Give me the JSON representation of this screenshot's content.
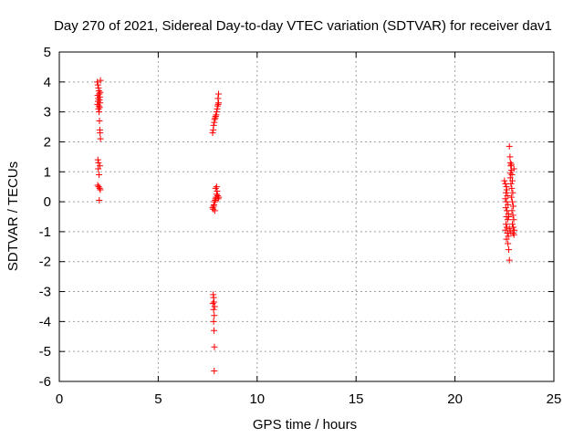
{
  "chart_data": {
    "type": "scatter",
    "title": "Day 270 of 2021, Sidereal Day-to-day VTEC variation (SDTVAR) for receiver dav1",
    "xlabel": "GPS time / hours",
    "ylabel": "SDTVAR / TECUs",
    "xlim": [
      0,
      25
    ],
    "ylim": [
      -6,
      5
    ],
    "x_ticks": [
      "0",
      "5",
      "10",
      "15",
      "20",
      "25"
    ],
    "y_ticks": [
      "-6",
      "-5",
      "-4",
      "-3",
      "-2",
      "-1",
      "0",
      "1",
      "2",
      "3",
      "4",
      "5"
    ],
    "grid": true,
    "marker": "+",
    "color": "#ff0000",
    "series": [
      {
        "points": [
          [
            1.92,
            4.0
          ],
          [
            1.95,
            3.9
          ],
          [
            1.98,
            3.8
          ],
          [
            2.0,
            3.7
          ],
          [
            2.02,
            3.6
          ],
          [
            1.94,
            3.55
          ],
          [
            2.05,
            3.5
          ],
          [
            1.97,
            3.45
          ],
          [
            2.03,
            3.4
          ],
          [
            1.96,
            3.35
          ],
          [
            2.06,
            3.3
          ],
          [
            1.93,
            3.25
          ],
          [
            2.0,
            3.2
          ],
          [
            2.04,
            3.15
          ],
          [
            1.98,
            3.1
          ],
          [
            2.08,
            4.05
          ],
          [
            2.07,
            3.65
          ],
          [
            2.01,
            3.0
          ],
          [
            2.03,
            2.7
          ],
          [
            2.05,
            2.4
          ],
          [
            2.06,
            2.3
          ],
          [
            2.08,
            2.1
          ],
          [
            1.95,
            1.4
          ],
          [
            1.98,
            1.3
          ],
          [
            2.05,
            1.2
          ],
          [
            1.97,
            1.1
          ],
          [
            2.01,
            0.9
          ],
          [
            1.94,
            0.55
          ],
          [
            1.99,
            0.5
          ],
          [
            2.04,
            0.45
          ],
          [
            2.07,
            0.4
          ],
          [
            2.02,
            0.05
          ]
        ]
      },
      {
        "points": [
          [
            7.75,
            2.3
          ],
          [
            7.78,
            2.4
          ],
          [
            7.8,
            2.55
          ],
          [
            7.83,
            2.65
          ],
          [
            7.85,
            2.75
          ],
          [
            7.88,
            2.8
          ],
          [
            7.9,
            2.85
          ],
          [
            7.93,
            2.9
          ],
          [
            7.95,
            3.0
          ],
          [
            7.98,
            3.1
          ],
          [
            8.0,
            3.2
          ],
          [
            8.03,
            3.25
          ],
          [
            8.05,
            3.3
          ],
          [
            8.02,
            3.45
          ],
          [
            8.05,
            3.6
          ],
          [
            7.75,
            -0.2
          ],
          [
            7.78,
            -0.25
          ],
          [
            7.8,
            -0.15
          ],
          [
            7.82,
            -0.1
          ],
          [
            7.85,
            0.0
          ],
          [
            7.88,
            0.05
          ],
          [
            7.9,
            0.1
          ],
          [
            7.93,
            0.15
          ],
          [
            7.95,
            0.25
          ],
          [
            7.98,
            0.35
          ],
          [
            7.9,
            0.45
          ],
          [
            7.95,
            0.5
          ],
          [
            8.0,
            0.2
          ],
          [
            8.03,
            0.1
          ],
          [
            8.06,
            0.15
          ],
          [
            7.86,
            -0.3
          ],
          [
            7.78,
            -3.1
          ],
          [
            7.8,
            -3.2
          ],
          [
            7.82,
            -3.35
          ],
          [
            7.76,
            -3.4
          ],
          [
            7.85,
            -3.5
          ],
          [
            7.8,
            -3.6
          ],
          [
            7.83,
            -3.8
          ],
          [
            7.8,
            -4.0
          ],
          [
            7.82,
            -4.3
          ],
          [
            7.84,
            -4.85
          ],
          [
            7.83,
            -5.65
          ]
        ]
      },
      {
        "points": [
          [
            22.5,
            0.7
          ],
          [
            22.55,
            0.6
          ],
          [
            22.6,
            0.5
          ],
          [
            22.62,
            0.4
          ],
          [
            22.58,
            0.3
          ],
          [
            22.65,
            0.2
          ],
          [
            22.55,
            0.1
          ],
          [
            22.6,
            0.0
          ],
          [
            22.68,
            -0.1
          ],
          [
            22.57,
            -0.2
          ],
          [
            22.63,
            -0.3
          ],
          [
            22.7,
            -0.4
          ],
          [
            22.6,
            -0.5
          ],
          [
            22.66,
            -0.6
          ],
          [
            22.58,
            -0.75
          ],
          [
            22.62,
            -0.85
          ],
          [
            22.55,
            -0.95
          ],
          [
            22.65,
            -1.05
          ],
          [
            22.7,
            -1.15
          ],
          [
            22.6,
            -1.25
          ],
          [
            22.68,
            -1.4
          ],
          [
            22.72,
            -1.6
          ],
          [
            22.75,
            -1.95
          ],
          [
            22.75,
            1.85
          ],
          [
            22.78,
            1.5
          ],
          [
            22.8,
            1.3
          ],
          [
            22.82,
            1.2
          ],
          [
            22.85,
            1.05
          ],
          [
            22.88,
            0.9
          ],
          [
            22.8,
            0.8
          ],
          [
            22.9,
            0.7
          ],
          [
            22.83,
            0.6
          ],
          [
            22.87,
            0.45
          ],
          [
            22.92,
            0.3
          ],
          [
            22.85,
            0.15
          ],
          [
            22.9,
            0.0
          ],
          [
            22.95,
            -0.15
          ],
          [
            22.88,
            -0.3
          ],
          [
            22.93,
            -0.45
          ],
          [
            22.97,
            -0.6
          ],
          [
            22.9,
            -0.75
          ],
          [
            22.95,
            -0.85
          ],
          [
            23.0,
            -0.95
          ],
          [
            22.93,
            -1.05
          ],
          [
            22.98,
            -1.1
          ],
          [
            22.8,
            -1.0
          ],
          [
            22.75,
            -0.9
          ],
          [
            22.85,
            1.25
          ],
          [
            22.8,
            0.95
          ],
          [
            22.98,
            1.1
          ],
          [
            22.72,
            -0.5
          ]
        ]
      }
    ]
  }
}
